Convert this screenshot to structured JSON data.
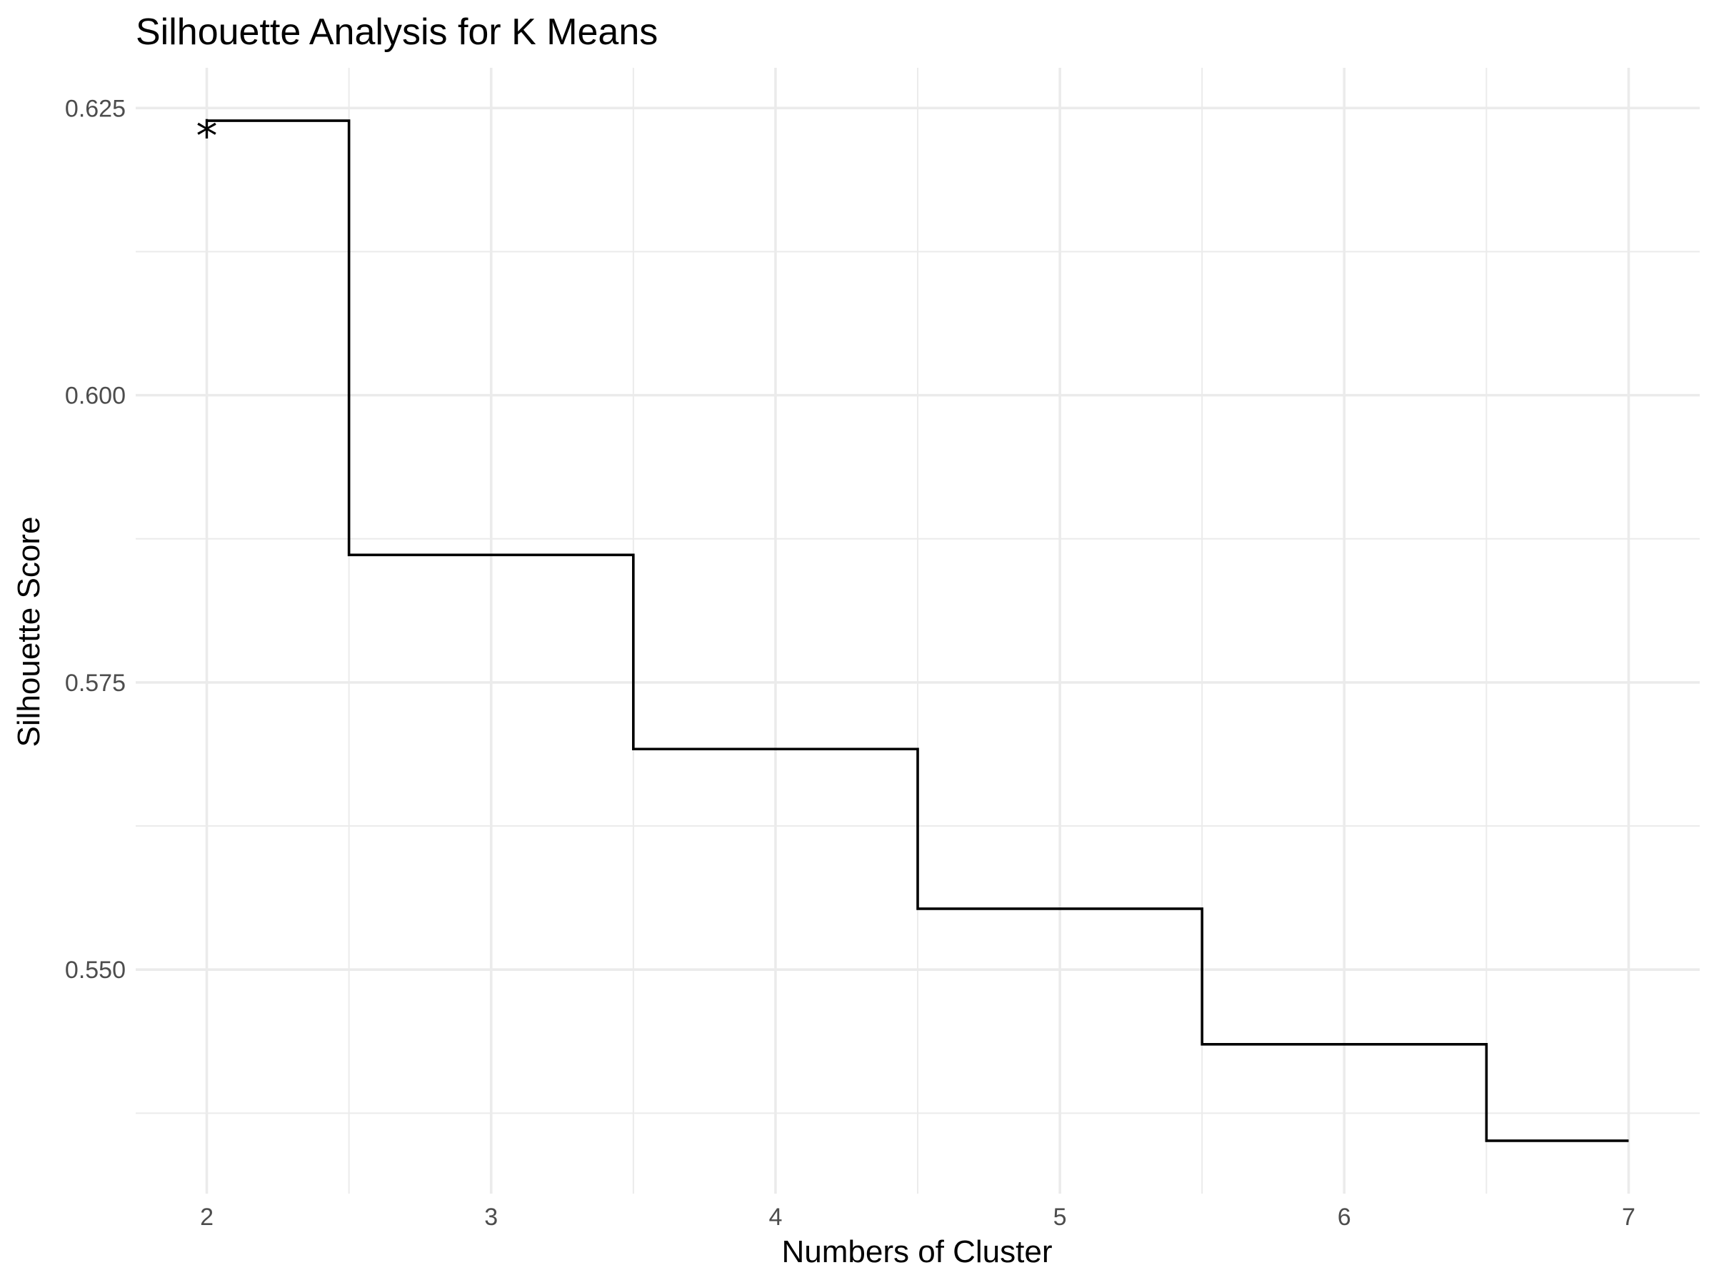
{
  "chart_data": {
    "type": "line",
    "step": "mid",
    "title": "Silhouette Analysis for K Means",
    "xlabel": "Numbers of Cluster",
    "ylabel": "Silhouette Score",
    "x": [
      2,
      3,
      4,
      5,
      6,
      7
    ],
    "values": [
      0.6239,
      0.5861,
      0.5692,
      0.5553,
      0.5435,
      0.5351
    ],
    "xlim": [
      1.75,
      7.25
    ],
    "ylim": [
      0.5305,
      0.6285
    ],
    "xticks": [
      2,
      3,
      4,
      5,
      6,
      7
    ],
    "xtick_labels": [
      "2",
      "3",
      "4",
      "5",
      "6",
      "7"
    ],
    "yticks": [
      0.55,
      0.575,
      0.6,
      0.625
    ],
    "ytick_labels": [
      "0.550",
      "0.575",
      "0.600",
      "0.625"
    ],
    "yminor": [
      0.5375,
      0.5625,
      0.5875,
      0.6125
    ],
    "xminor": [
      2.5,
      3.5,
      4.5,
      5.5,
      6.5
    ],
    "grid": true,
    "legend": "none",
    "annotation": {
      "text": "*",
      "x": 2,
      "y": 0.6239
    },
    "colors": {
      "line": "#000000",
      "grid": "#ebebeb",
      "tick_text": "#4d4d4d",
      "background": "#ffffff"
    }
  }
}
